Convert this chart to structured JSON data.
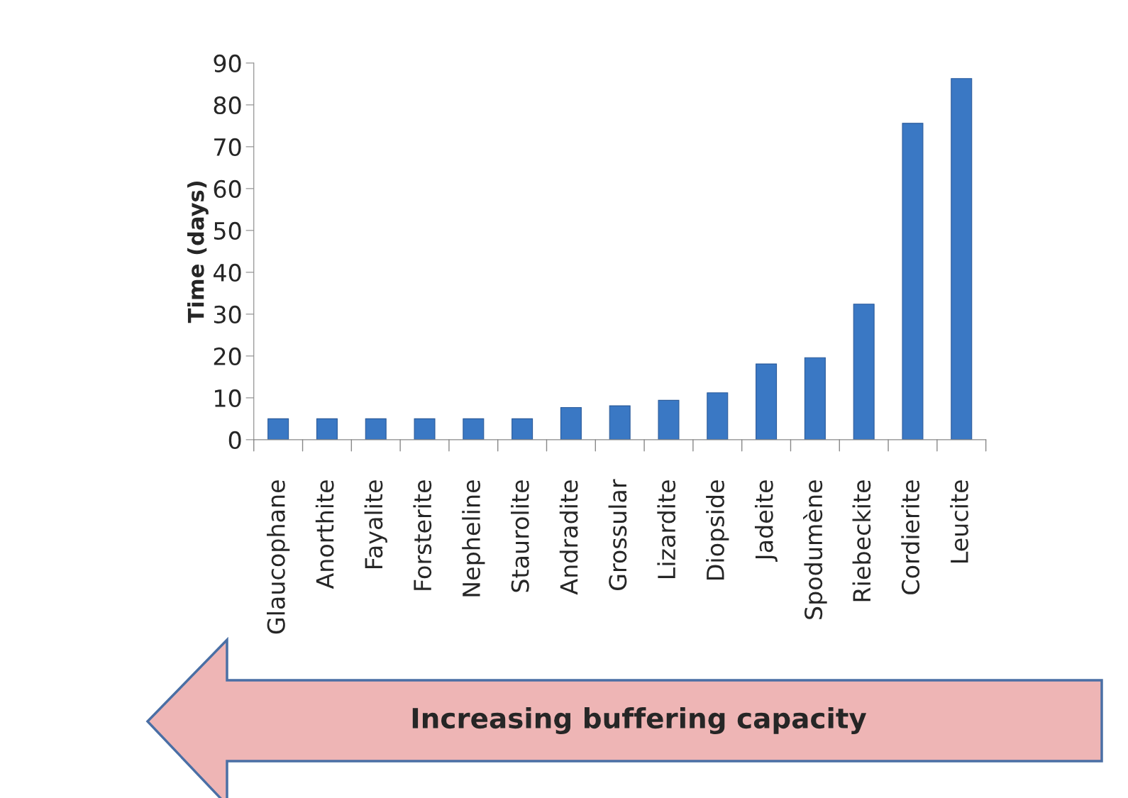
{
  "chart_data": {
    "type": "bar",
    "ylabel": "Time (days)",
    "categories": [
      "Glaucophane",
      "Anorthite",
      "Fayalite",
      "Forsterite",
      "Nepheline",
      "Staurolite",
      "Andradite",
      "Grossular",
      "Lizardite",
      "Diopside",
      "Jadeite",
      "Spodumène",
      "Riebeckite",
      "Cordierite",
      "Leucite"
    ],
    "values": [
      5.0,
      5.0,
      5.0,
      5.0,
      5.0,
      5.0,
      7.7,
      8.1,
      9.4,
      11.2,
      18.1,
      19.6,
      32.4,
      75.6,
      86.3
    ],
    "color": "#3a78c4",
    "ylim": [
      0,
      90
    ],
    "yticks": [
      0,
      10,
      20,
      30,
      40,
      50,
      60,
      70,
      80,
      90
    ],
    "grid": false,
    "legend": false,
    "annotations": [
      "Increasing buffering capacity"
    ]
  }
}
